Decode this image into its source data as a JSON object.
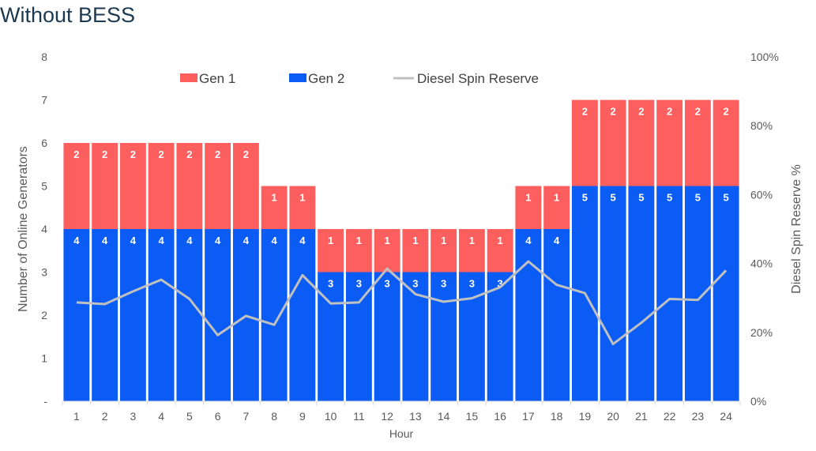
{
  "page": {
    "title": "Without BESS"
  },
  "chart_data": {
    "type": "bar",
    "stacked": true,
    "title": "",
    "xlabel": "Hour",
    "ylabel": "Number of Online Generators",
    "y2label": "Diesel Spin Reserve %",
    "categories": [
      "1",
      "2",
      "3",
      "4",
      "5",
      "6",
      "7",
      "8",
      "9",
      "10",
      "11",
      "12",
      "13",
      "14",
      "15",
      "16",
      "17",
      "18",
      "19",
      "20",
      "21",
      "22",
      "23",
      "24"
    ],
    "ylim": [
      0,
      8
    ],
    "y_ticks": [
      "-",
      "1",
      "2",
      "3",
      "4",
      "5",
      "6",
      "7",
      "8"
    ],
    "y2lim": [
      0,
      100
    ],
    "y2_ticks": [
      "0%",
      "20%",
      "40%",
      "60%",
      "80%",
      "100%"
    ],
    "legend_position": "top",
    "grid": false,
    "series": [
      {
        "name": "Gen 2",
        "type": "bar",
        "color": "#0a5cf5",
        "values": [
          4,
          4,
          4,
          4,
          4,
          4,
          4,
          4,
          4,
          3,
          3,
          3,
          3,
          3,
          3,
          3,
          4,
          4,
          5,
          5,
          5,
          5,
          5,
          5
        ]
      },
      {
        "name": "Gen 1",
        "type": "bar",
        "color": "#fd5f5f",
        "values": [
          2,
          2,
          2,
          2,
          2,
          2,
          2,
          1,
          1,
          1,
          1,
          1,
          1,
          1,
          1,
          1,
          1,
          1,
          2,
          2,
          2,
          2,
          2,
          2
        ]
      },
      {
        "name": "Diesel Spin Reserve",
        "type": "line",
        "axis": "right",
        "color": "#c0c0c0",
        "values": [
          28.7,
          28.2,
          31.9,
          35.3,
          29.7,
          19.2,
          24.8,
          22.2,
          36.6,
          28.4,
          28.7,
          38.5,
          31.1,
          28.9,
          29.9,
          33.1,
          40.6,
          33.8,
          31.4,
          16.6,
          22.8,
          29.7,
          29.4,
          38.0
        ]
      }
    ],
    "legend": [
      {
        "label": "Gen 1",
        "color": "#fd5f5f",
        "marker": "rect"
      },
      {
        "label": "Gen 2",
        "color": "#0a5cf5",
        "marker": "rect"
      },
      {
        "label": "Diesel Spin Reserve",
        "color": "#c0c0c0",
        "marker": "line"
      }
    ]
  }
}
